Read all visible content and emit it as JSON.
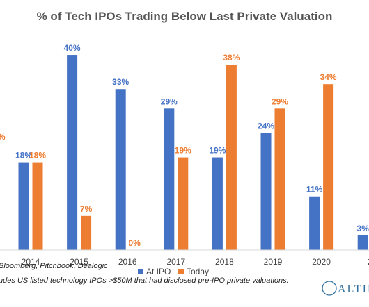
{
  "chart_data": {
    "type": "bar",
    "title": "% of Tech IPOs Trading Below Last Private Valuation",
    "categories": [
      "2014",
      "2015",
      "2016",
      "2017",
      "2018",
      "2019",
      "2020",
      "2"
    ],
    "series": [
      {
        "name": "At IPO",
        "values": [
          18,
          40,
          33,
          29,
          19,
          24,
          11,
          3
        ],
        "labels": [
          "18%",
          "40%",
          "33%",
          "29%",
          "19%",
          "24%",
          "11%",
          "3%"
        ]
      },
      {
        "name": "Today",
        "values": [
          18,
          7,
          0,
          19,
          38,
          29,
          34,
          null
        ],
        "labels": [
          "18%",
          "7%",
          "0%",
          "19%",
          "38%",
          "29%",
          "34%",
          ""
        ]
      }
    ],
    "ylim": [
      0,
      42
    ],
    "grid": false,
    "legend": "bottom-center",
    "colors": {
      "At IPO": "#4472c4",
      "Today": "#ed7d31"
    },
    "edge_label": "%"
  },
  "footnotes": {
    "source": "Bloomberg, Pitchbook, Dealogic",
    "note": "udes US listed technology IPOs >$50M that had disclosed pre-IPO private valuations."
  },
  "logo": {
    "text": "ALTIME"
  }
}
